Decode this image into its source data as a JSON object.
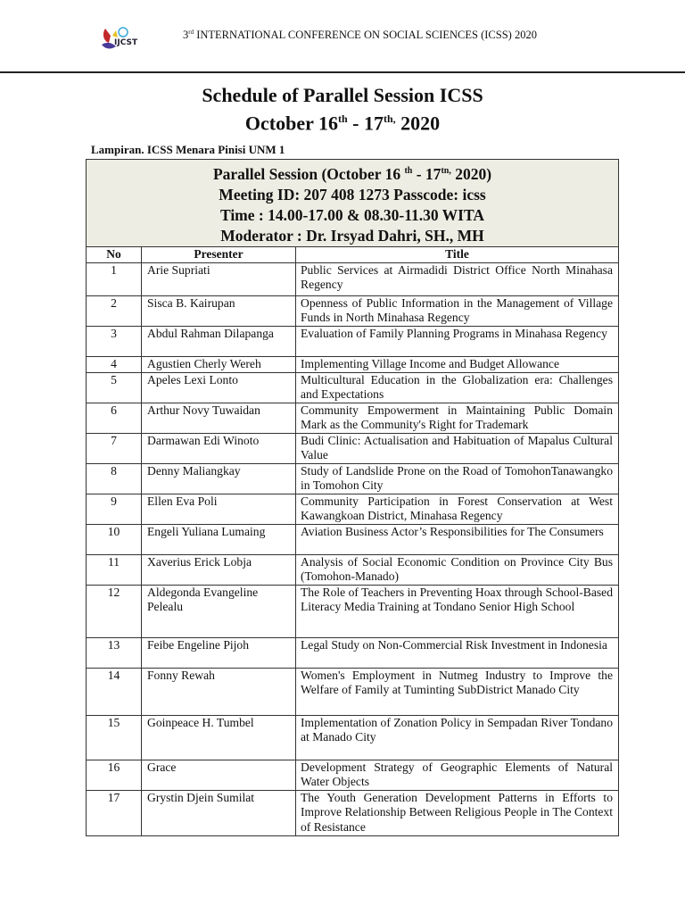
{
  "header": {
    "conference_ordinal": "3",
    "conference_ordinal_suffix": "rd",
    "conference_name": "INTERNATIONAL CONFERENCE ON SOCIAL SCIENCES (ICSS) 2020",
    "logo_text": "IJCST"
  },
  "title": {
    "line1": "Schedule of Parallel Session ICSS",
    "line2_a": "October 16",
    "line2_sup1": "th",
    "line2_b": " - 17",
    "line2_sup2": "th,",
    "line2_c": " 2020"
  },
  "annex": "Lampiran. ICSS Menara Pinisi UNM 1",
  "session": {
    "line1_a": "Parallel Session  (October 16 ",
    "line1_sup1": "th",
    "line1_b": " - 17",
    "line1_sup2": "tn,",
    "line1_c": " 2020)",
    "meeting": "Meeting ID: 207 408 1273 Passcode: icss",
    "time": "Time : 14.00-17.00 & 08.30-11.30 WITA",
    "moderator": "Moderator : Dr. Irsyad Dahri, SH., MH"
  },
  "columns": [
    "No",
    "Presenter",
    "Title"
  ],
  "rows": [
    {
      "no": "1",
      "presenter": "Arie Supriati",
      "title": "Public Services at Airmadidi District Office North Minahasa Regency"
    },
    {
      "no": "2",
      "presenter": "Sisca B. Kairupan",
      "title": "Openness of Public Information in the Management of Village Funds in North Minahasa Regency"
    },
    {
      "no": "3",
      "presenter": "Abdul Rahman Dilapanga",
      "title": "Evaluation of Family Planning Programs in Minahasa Regency"
    },
    {
      "no": "4",
      "presenter": "Agustien Cherly Wereh",
      "title": "Implementing Village Income and Budget Allowance"
    },
    {
      "no": "5",
      "presenter": "Apeles Lexi Lonto",
      "title": "Multicultural Education in the Globalization era: Challenges and Expectations"
    },
    {
      "no": "6",
      "presenter": "Arthur Novy Tuwaidan",
      "title": "Community Empowerment in Maintaining Public Domain Mark as the Community's Right for Trademark"
    },
    {
      "no": "7",
      "presenter": "Darmawan Edi Winoto",
      "title": "Budi Clinic: Actualisation and Habituation of Mapalus Cultural Value"
    },
    {
      "no": "8",
      "presenter": "Denny Maliangkay",
      "title": "Study of Landslide Prone on the Road of TomohonTanawangko in Tomohon City"
    },
    {
      "no": "9",
      "presenter": "Ellen Eva Poli",
      "title": "Community Participation in Forest Conservation at West Kawangkoan District, Minahasa Regency"
    },
    {
      "no": "10",
      "presenter": "Engeli Yuliana Lumaing",
      "title": "Aviation Business Actor’s Responsibilities for The Consumers"
    },
    {
      "no": "11",
      "presenter": "Xaverius Erick Lobja",
      "title": "Analysis of Social Economic Condition on Province City Bus (Tomohon-Manado)"
    },
    {
      "no": "12",
      "presenter": "Aldegonda Evangeline Pelealu",
      "title": "The Role of Teachers in Preventing Hoax through School-Based Literacy Media Training at Tondano Senior High School"
    },
    {
      "no": "13",
      "presenter": "Feibe Engeline Pijoh",
      "title": "Legal Study on Non-Commercial Risk Investment in Indonesia"
    },
    {
      "no": "14",
      "presenter": "Fonny Rewah",
      "title": "Women's Employment in Nutmeg Industry to Improve the Welfare of Family at Tuminting SubDistrict Manado City"
    },
    {
      "no": "15",
      "presenter": "Goinpeace H. Tumbel",
      "title": "Implementation of Zonation Policy in Sempadan River Tondano at Manado City"
    },
    {
      "no": "16",
      "presenter": "Grace",
      "title": " Development Strategy of Geographic Elements of Natural Water Objects"
    },
    {
      "no": "17",
      "presenter": "Grystin Djein Sumilat",
      "title": "The Youth Generation Development Patterns in Efforts to Improve Relationship Between Religious People in The Context of Resistance"
    }
  ]
}
